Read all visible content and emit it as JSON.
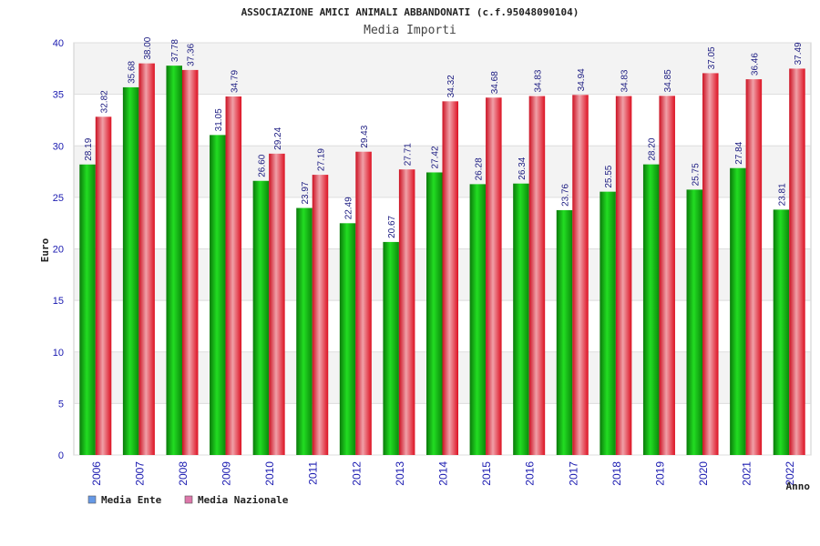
{
  "chart_data": {
    "type": "bar",
    "title": "ASSOCIAZIONE AMICI ANIMALI ABBANDONATI (c.f.95048090104)",
    "subtitle": "Media Importi",
    "xlabel": "Anno",
    "ylabel": "Euro",
    "ylim": [
      0,
      40
    ],
    "yticks": [
      0,
      5,
      10,
      15,
      20,
      25,
      30,
      35,
      40
    ],
    "grid": true,
    "legend_position": "bottom-left",
    "categories": [
      "2006",
      "2007",
      "2008",
      "2009",
      "2010",
      "2011",
      "2012",
      "2013",
      "2014",
      "2015",
      "2016",
      "2017",
      "2018",
      "2019",
      "2020",
      "2021",
      "2022"
    ],
    "series": [
      {
        "name": "Media Ente",
        "legend_color": "#6699e6",
        "bar_color": "#11bb11",
        "values": [
          28.19,
          35.68,
          37.78,
          31.05,
          26.6,
          23.97,
          22.49,
          20.67,
          27.42,
          26.28,
          26.34,
          23.76,
          25.55,
          28.2,
          25.75,
          27.84,
          23.81
        ],
        "labels": [
          "28.19",
          "35.68",
          "37.78",
          "31.05",
          "26.60",
          "23.97",
          "22.49",
          "20.67",
          "27.42",
          "26.28",
          "26.34",
          "23.76",
          "25.55",
          "28.20",
          "25.75",
          "27.84",
          "23.81"
        ]
      },
      {
        "name": "Media Nazionale",
        "legend_color": "#dd77aa",
        "bar_color": "#ee2233",
        "values": [
          32.82,
          38.0,
          37.36,
          34.79,
          29.24,
          27.19,
          29.43,
          27.71,
          34.32,
          34.68,
          34.83,
          34.94,
          34.83,
          34.85,
          37.05,
          36.46,
          37.49
        ],
        "labels": [
          "32.82",
          "38.00",
          "37.36",
          "34.79",
          "29.24",
          "27.19",
          "29.43",
          "27.71",
          "34.32",
          "34.68",
          "34.83",
          "34.94",
          "34.83",
          "34.85",
          "37.05",
          "36.46",
          "37.49"
        ]
      }
    ]
  }
}
